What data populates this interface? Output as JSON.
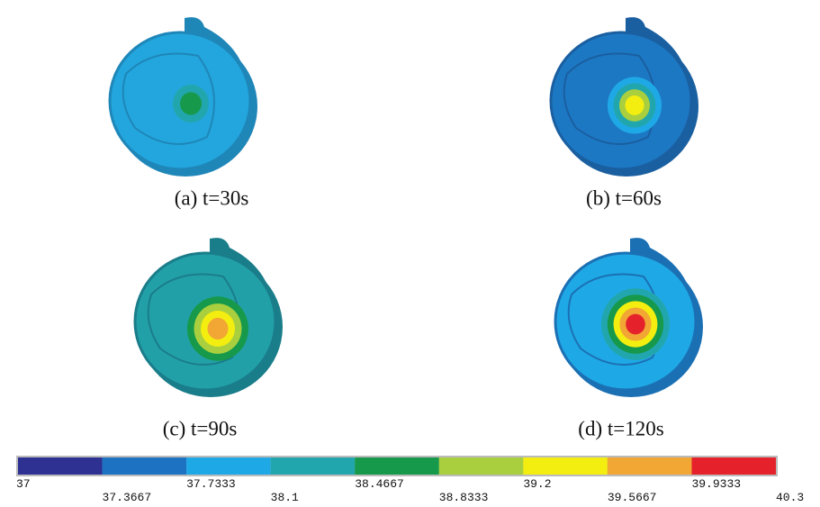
{
  "panels": [
    {
      "caption": "(a) t=30s"
    },
    {
      "caption": "(b) t=60s"
    },
    {
      "caption": "(c) t=90s"
    },
    {
      "caption": "(d) t=120s"
    }
  ],
  "colorbar": {
    "colors": [
      "#2e3192",
      "#1d72c2",
      "#1ea9e6",
      "#22a6ae",
      "#16994a",
      "#a9cf3e",
      "#f4ee10",
      "#f2a634",
      "#e5222b"
    ],
    "labels": [
      "37",
      "37.3667",
      "37.7333",
      "38.1",
      "38.4667",
      "38.8333",
      "39.2",
      "39.5667",
      "39.9333",
      "40.3"
    ]
  }
}
